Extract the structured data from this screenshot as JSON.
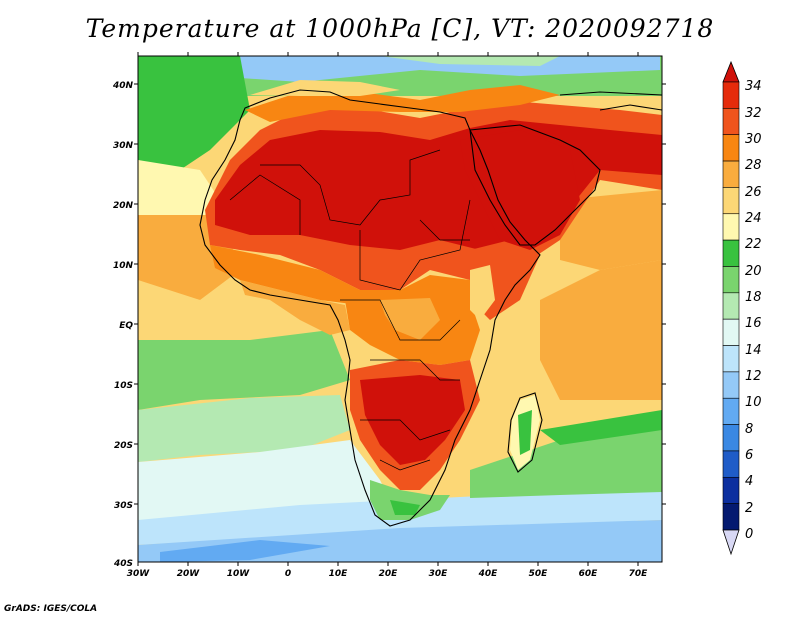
{
  "title": "Temperature at 1000hPa [C], VT: 2020092718",
  "credit": "GrADS: IGES/COLA",
  "map": {
    "lon_labels": [
      "30W",
      "20W",
      "10W",
      "0",
      "10E",
      "20E",
      "30E",
      "40E",
      "50E",
      "60E",
      "70E"
    ],
    "lat_labels": [
      "40N",
      "30N",
      "20N",
      "10N",
      "EQ",
      "10S",
      "20S",
      "30S",
      "40S"
    ]
  },
  "colorbar": {
    "labels": [
      "34",
      "32",
      "30",
      "28",
      "26",
      "24",
      "22",
      "20",
      "18",
      "16",
      "14",
      "12",
      "10",
      "8",
      "6",
      "4",
      "2",
      "0"
    ],
    "colors": {
      "gt34": "#d0110a",
      "32-34": "#e52b0b",
      "30-32": "#f0541d",
      "28-30": "#f88612",
      "26-28": "#f9ac3e",
      "24-26": "#fcd776",
      "22-24": "#fff8b0",
      "20-22": "#39c23f",
      "18-20": "#7ad46e",
      "16-18": "#b4e9b2",
      "14-16": "#e2f8f4",
      "12-14": "#bde4fb",
      "10-12": "#94c9f7",
      "8-10": "#62aaf2",
      "6-8": "#3a88e3",
      "4-6": "#1f5cc8",
      "2-4": "#0c2f9f",
      "0-2": "#041a70",
      "lt0": "#d8d8f4"
    }
  }
}
